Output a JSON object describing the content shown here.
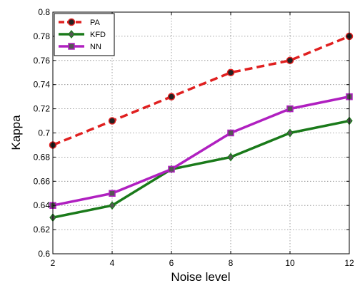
{
  "chart_data": {
    "type": "line",
    "xlabel": "Noise level",
    "ylabel": "Kappa",
    "x": [
      2,
      4,
      6,
      8,
      10,
      12
    ],
    "xticks": [
      "2",
      "4",
      "6",
      "8",
      "10",
      "12"
    ],
    "yticks": [
      "0.6",
      "0.62",
      "0.64",
      "0.66",
      "0.68",
      "0.7",
      "0.72",
      "0.74",
      "0.76",
      "0.78",
      "0.8"
    ],
    "xlim": [
      2,
      12
    ],
    "ylim": [
      0.6,
      0.8
    ],
    "grid": true,
    "legend_position": "top-left",
    "series": [
      {
        "name": "PA",
        "values": [
          0.69,
          0.71,
          0.73,
          0.75,
          0.76,
          0.78
        ],
        "color": "#e02020",
        "line_style": "dashed",
        "marker": "circle"
      },
      {
        "name": "KFD",
        "values": [
          0.63,
          0.64,
          0.67,
          0.68,
          0.7,
          0.71
        ],
        "color": "#1a7a1a",
        "line_style": "solid",
        "marker": "diamond"
      },
      {
        "name": "NN",
        "values": [
          0.64,
          0.65,
          0.67,
          0.7,
          0.72,
          0.73
        ],
        "color": "#b020c0",
        "line_style": "solid",
        "marker": "square"
      }
    ]
  }
}
